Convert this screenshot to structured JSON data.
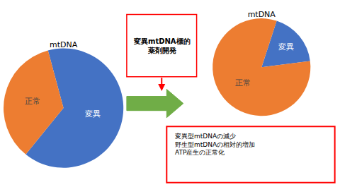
{
  "chart_data": [
    {
      "type": "pie",
      "title": "mtDNA",
      "categories": [
        "変異",
        "正常"
      ],
      "values": [
        65,
        35
      ],
      "colors": [
        "#4472c4",
        "#ed7d31"
      ],
      "annotations": [
        {
          "text": "変異mtDNA標的\n薬剤開発",
          "color": "#ff0000"
        }
      ]
    },
    {
      "type": "pie",
      "title": "mtDNA",
      "categories": [
        "変異",
        "正常"
      ],
      "values": [
        18,
        82
      ],
      "colors": [
        "#4472c4",
        "#ed7d31"
      ],
      "annotations": [
        {
          "text": "変異型mtDNAの減少\n野生型mtDNAの相対的増加\nATP産生の正常化",
          "color": "#ff0000"
        }
      ]
    }
  ]
}
